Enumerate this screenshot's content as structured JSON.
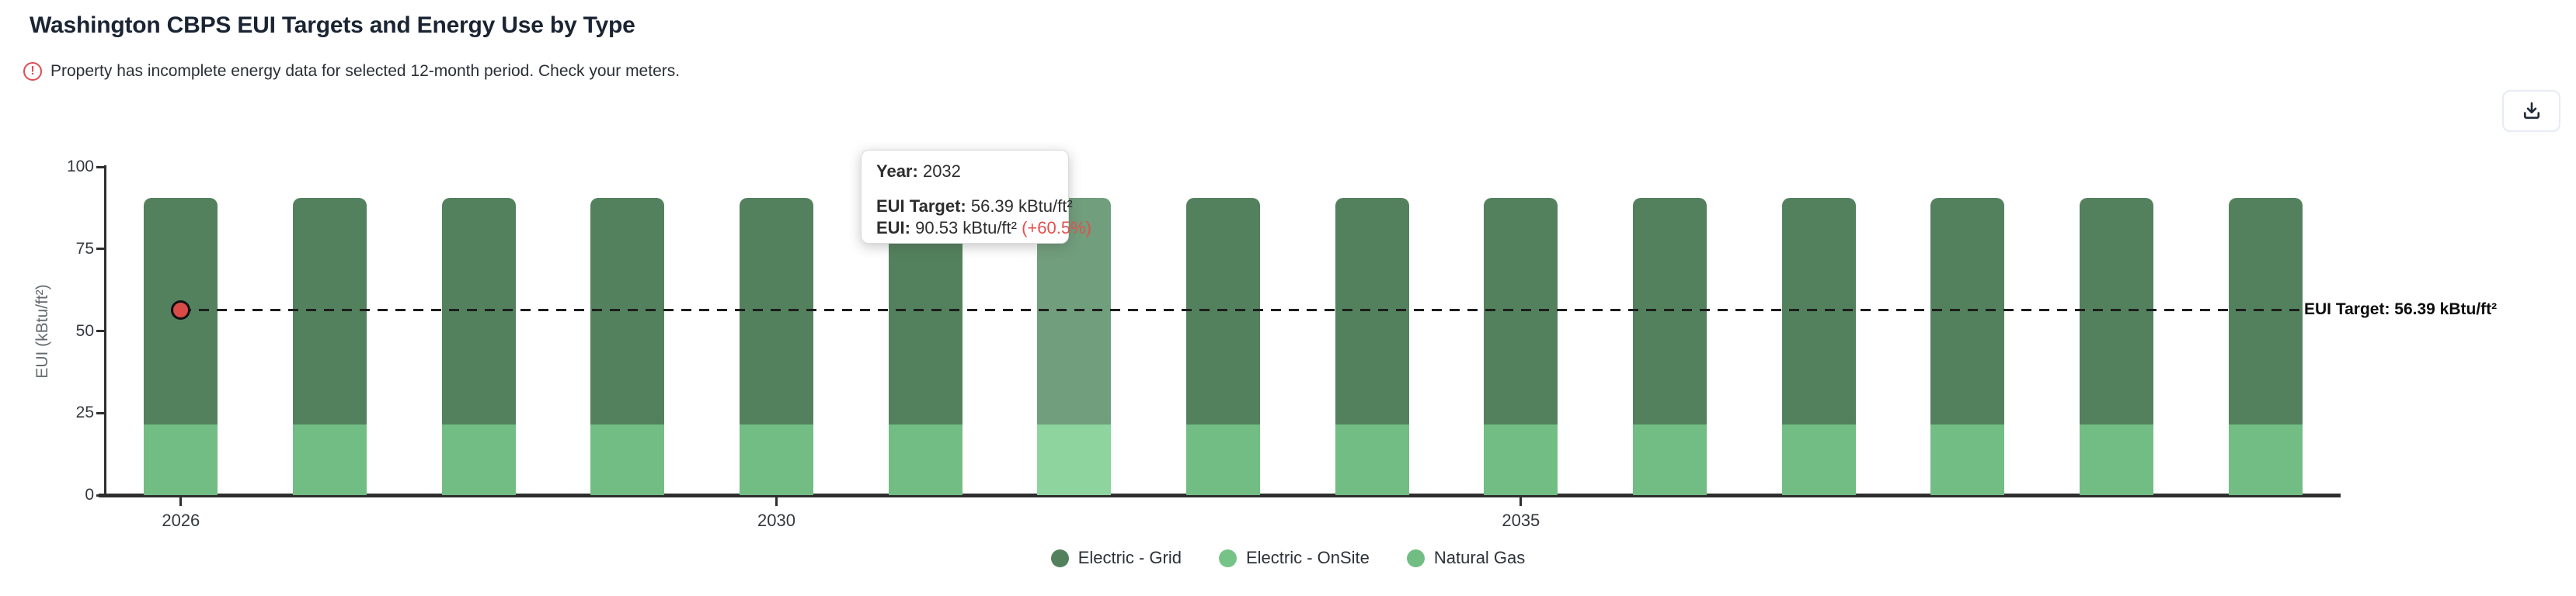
{
  "header": {
    "title": "Washington CBPS EUI Targets and Energy Use by Type",
    "warning_text": "Property has incomplete energy data for selected 12-month period. Check your meters.",
    "warning_icon_glyph": "!"
  },
  "icons": {
    "warning": "alert-circle-icon",
    "download": "download-icon"
  },
  "tooltip": {
    "year_label": "Year:",
    "year_value": "2032",
    "target_label": "EUI Target:",
    "target_value": "56.39 kBtu/ft²",
    "eui_label": "EUI:",
    "eui_value": "90.53 kBtu/ft²",
    "eui_delta": "(+60.5%)",
    "delta_color": "#e2504e"
  },
  "chart_data": {
    "type": "bar",
    "stacked": true,
    "title": "Washington CBPS EUI Targets and Energy Use by Type",
    "ylabel": "EUI (kBtu/ft²)",
    "ylim": [
      0,
      100
    ],
    "yticks": [
      0,
      25,
      50,
      75,
      100
    ],
    "grid": false,
    "legend_position": "bottom",
    "x": [
      2026,
      2027,
      2028,
      2029,
      2030,
      2031,
      2032,
      2033,
      2034,
      2035,
      2036,
      2037,
      2038,
      2039,
      2040
    ],
    "x_tick_years": [
      2026,
      2030,
      2035
    ],
    "x_tick_labels": [
      "2026",
      "2030",
      "2035"
    ],
    "highlighted_year": 2032,
    "eui_total_per_year": 90.53,
    "series": [
      {
        "name": "Electric - Grid",
        "color": "#53815d",
        "hover_color": "#719e7c",
        "values": [
          69.13,
          69.13,
          69.13,
          69.13,
          69.13,
          69.13,
          69.13,
          69.13,
          69.13,
          69.13,
          69.13,
          69.13,
          69.13,
          69.13,
          69.13
        ]
      },
      {
        "name": "Electric - OnSite",
        "color": "#76c388",
        "hover_color": "#99dcae",
        "values": [
          0,
          0,
          0,
          0,
          0,
          0,
          0,
          0,
          0,
          0,
          0,
          0,
          0,
          0,
          0
        ]
      },
      {
        "name": "Natural Gas",
        "color": "#72bd84",
        "hover_color": "#8dd49e",
        "values": [
          21.4,
          21.4,
          21.4,
          21.4,
          21.4,
          21.4,
          21.4,
          21.4,
          21.4,
          21.4,
          21.4,
          21.4,
          21.4,
          21.4,
          21.4
        ]
      }
    ],
    "target_line": {
      "value": 56.39,
      "label": "EUI Target: 56.39 kBtu/ft²",
      "marker_year": 2026,
      "marker_color": "#d94b47",
      "line_style": "dashed",
      "line_color": "#1d1d1d"
    }
  }
}
